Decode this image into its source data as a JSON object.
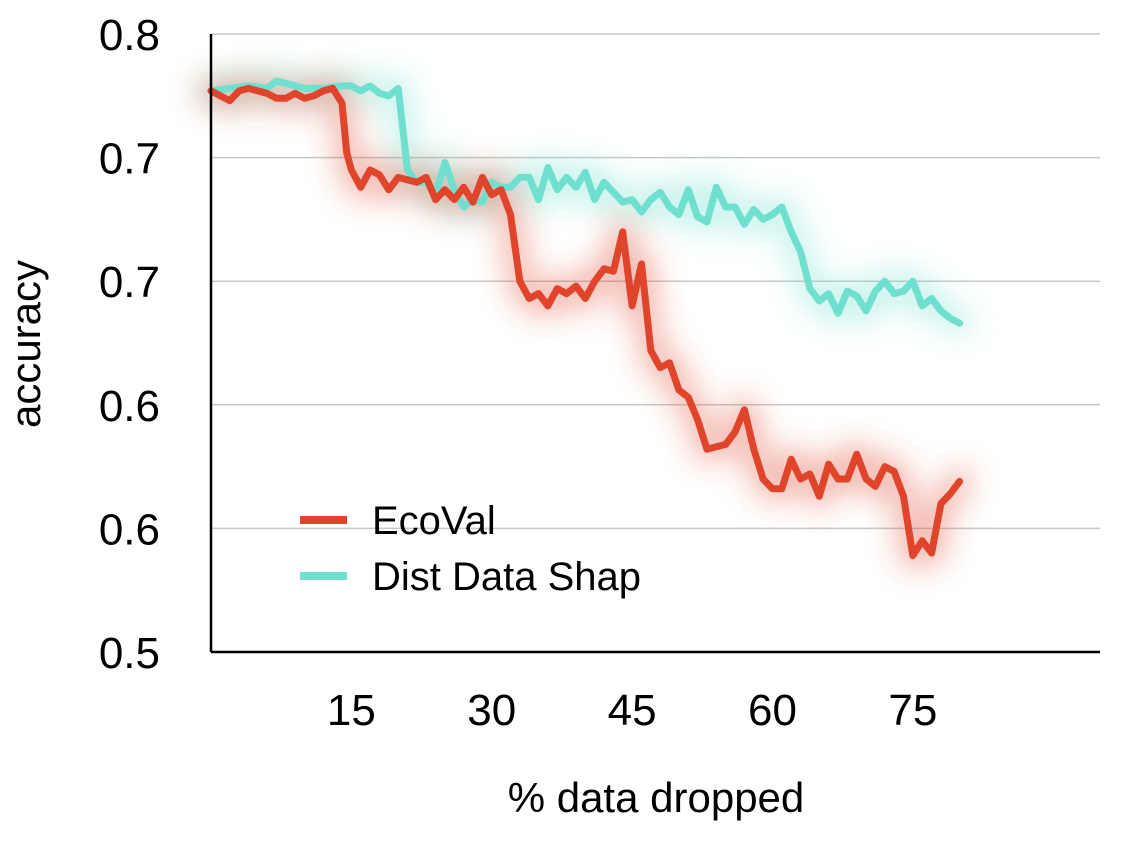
{
  "chart_data": {
    "type": "line",
    "title": "",
    "xlabel": "% data dropped",
    "ylabel": "accuracy",
    "x_ticks": [
      15,
      30,
      45,
      60,
      75
    ],
    "y_tick_labels": [
      "0.8",
      "0.7",
      "0.7",
      "0.6",
      "0.6",
      "0.5"
    ],
    "y_tick_values": [
      0.8,
      0.75,
      0.7,
      0.65,
      0.6,
      0.55
    ],
    "xlim": [
      0,
      95
    ],
    "ylim": [
      0.55,
      0.8
    ],
    "grid": "horizontal",
    "legend": "bottom-left",
    "series": [
      {
        "name": "EcoVal",
        "color": "#e0442a",
        "x": [
          0,
          1,
          2,
          3,
          4,
          5,
          6,
          7,
          8,
          9,
          10,
          11,
          12,
          13,
          14,
          14.5,
          15,
          16,
          17,
          18,
          19,
          20,
          21,
          22,
          23,
          24,
          25,
          26,
          27,
          28,
          29,
          30,
          31,
          32,
          33,
          34,
          35,
          36,
          37,
          38,
          39,
          40,
          41,
          42,
          43,
          44,
          45,
          46,
          47,
          48,
          49,
          50,
          51,
          52,
          53,
          54,
          55,
          56,
          57,
          58,
          59,
          60,
          61,
          62,
          63,
          64,
          65,
          66,
          67,
          68,
          69,
          70,
          71,
          72,
          73,
          74,
          75,
          76,
          77,
          78,
          79,
          80
        ],
        "values": [
          0.777,
          0.775,
          0.773,
          0.777,
          0.778,
          0.777,
          0.776,
          0.774,
          0.774,
          0.776,
          0.774,
          0.775,
          0.777,
          0.778,
          0.772,
          0.752,
          0.745,
          0.738,
          0.745,
          0.743,
          0.737,
          0.742,
          0.741,
          0.74,
          0.742,
          0.733,
          0.737,
          0.733,
          0.738,
          0.732,
          0.742,
          0.735,
          0.737,
          0.727,
          0.7,
          0.693,
          0.695,
          0.69,
          0.697,
          0.695,
          0.698,
          0.693,
          0.7,
          0.705,
          0.704,
          0.72,
          0.69,
          0.707,
          0.672,
          0.665,
          0.667,
          0.656,
          0.653,
          0.644,
          0.632,
          0.633,
          0.634,
          0.639,
          0.648,
          0.632,
          0.62,
          0.616,
          0.616,
          0.628,
          0.62,
          0.622,
          0.613,
          0.626,
          0.62,
          0.62,
          0.63,
          0.62,
          0.617,
          0.625,
          0.623,
          0.613,
          0.589,
          0.595,
          0.59,
          0.61,
          0.614,
          0.619
        ]
      },
      {
        "name": "Dist Data Shap",
        "color": "#6fe0cf",
        "x": [
          0,
          2,
          4,
          6,
          7,
          8,
          10,
          12,
          14,
          15,
          16,
          17,
          18,
          19,
          20,
          21,
          22,
          23,
          24,
          25,
          26,
          27,
          28,
          29,
          30,
          31,
          32,
          33,
          34,
          35,
          36,
          37,
          38,
          39,
          40,
          41,
          42,
          43,
          44,
          45,
          46,
          47,
          48,
          49,
          50,
          51,
          52,
          53,
          54,
          55,
          56,
          57,
          58,
          59,
          60,
          61,
          62,
          63,
          64,
          65,
          66,
          67,
          68,
          69,
          70,
          71,
          72,
          73,
          74,
          75,
          76,
          77,
          78,
          79,
          80
        ],
        "values": [
          0.777,
          0.778,
          0.779,
          0.778,
          0.781,
          0.78,
          0.778,
          0.778,
          0.779,
          0.779,
          0.777,
          0.779,
          0.776,
          0.775,
          0.778,
          0.745,
          0.74,
          0.74,
          0.735,
          0.748,
          0.737,
          0.73,
          0.733,
          0.732,
          0.74,
          0.738,
          0.738,
          0.742,
          0.742,
          0.733,
          0.746,
          0.737,
          0.742,
          0.738,
          0.744,
          0.733,
          0.74,
          0.736,
          0.732,
          0.733,
          0.728,
          0.733,
          0.736,
          0.73,
          0.727,
          0.737,
          0.726,
          0.724,
          0.738,
          0.73,
          0.73,
          0.723,
          0.729,
          0.725,
          0.727,
          0.73,
          0.72,
          0.712,
          0.697,
          0.692,
          0.695,
          0.687,
          0.696,
          0.694,
          0.688,
          0.696,
          0.7,
          0.695,
          0.696,
          0.7,
          0.69,
          0.693,
          0.688,
          0.685,
          0.683
        ]
      }
    ]
  }
}
